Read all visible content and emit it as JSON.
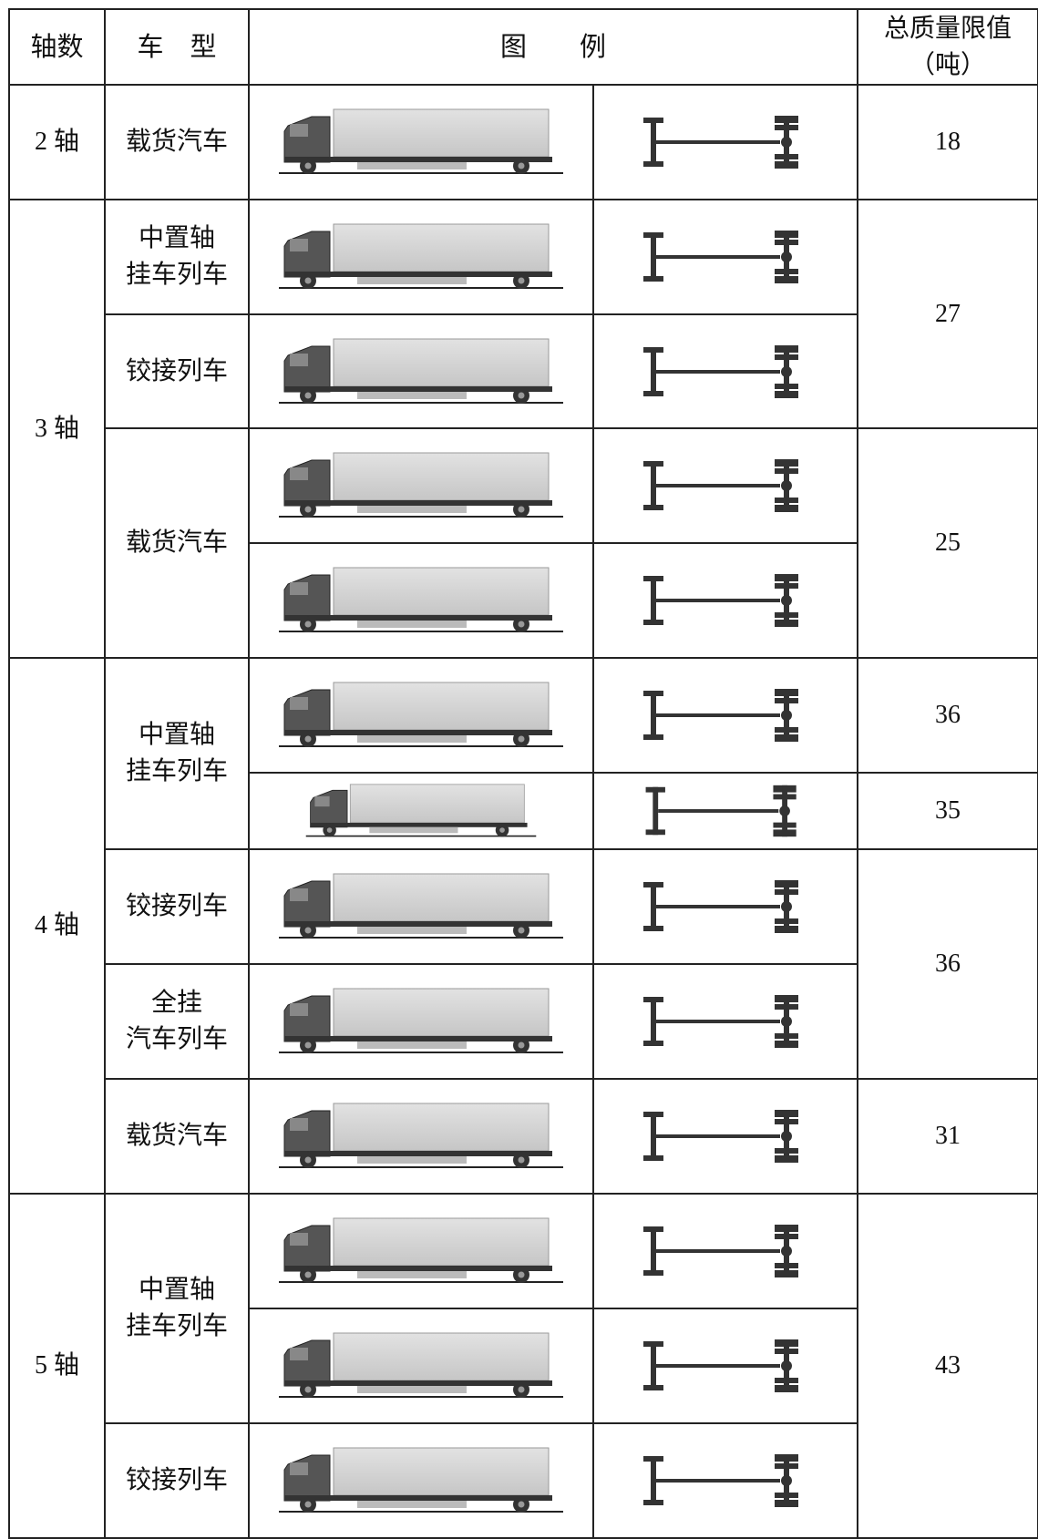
{
  "header": {
    "axles": "轴数",
    "type": "车　型",
    "legend": "图　　例",
    "limit": "总质量限值",
    "unit": "（吨）"
  },
  "axles": [
    "2 轴",
    "3 轴",
    "4 轴",
    "5 轴"
  ],
  "types": [
    "载货汽车",
    "中置轴\n挂车列车",
    "铰接列车",
    "载货汽车",
    "中置轴\n挂车列车",
    "铰接列车",
    "全挂\n汽车列车",
    "载货汽车",
    "中置轴\n挂车列车",
    "铰接列车"
  ],
  "limits": [
    18,
    27,
    25,
    36,
    35,
    36,
    31,
    43
  ]
}
